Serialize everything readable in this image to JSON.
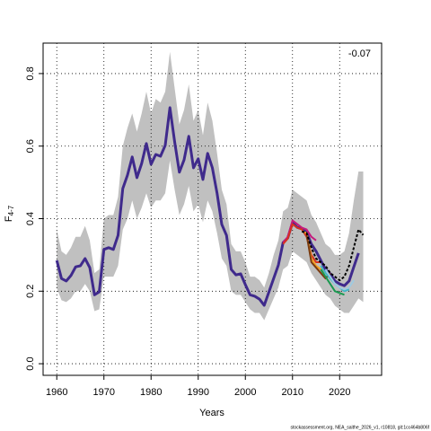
{
  "chart_data": {
    "type": "line",
    "xlabel": "Years",
    "ylabel": "F",
    "ylabel_sub": "4-7",
    "annotation": "-0.07",
    "footer": "stockassessment.org, NEA_saithe_2026_v1, r10818, git:1cc464b806f",
    "xlim": [
      1957.1,
      2028.9
    ],
    "ylim": [
      -0.032,
      0.884
    ],
    "xticks": [
      1960,
      1970,
      1980,
      1990,
      2000,
      2010,
      2020
    ],
    "yticks": [
      {
        "value": 0,
        "label": "0.0"
      },
      {
        "value": 0.2,
        "label": "0.2"
      },
      {
        "value": 0.4,
        "label": "0.4"
      },
      {
        "value": 0.6,
        "label": "0.6"
      },
      {
        "value": 0.8,
        "label": "0.8"
      }
    ],
    "grid": true,
    "band": {
      "color": "#c0c0c0",
      "x": [
        1960,
        1961,
        1962,
        1963,
        1964,
        1965,
        1966,
        1967,
        1968,
        1969,
        1970,
        1971,
        1972,
        1973,
        1974,
        1975,
        1976,
        1977,
        1978,
        1979,
        1980,
        1981,
        1982,
        1983,
        1984,
        1985,
        1986,
        1987,
        1988,
        1989,
        1990,
        1991,
        1992,
        1993,
        1994,
        1995,
        1996,
        1997,
        1998,
        1999,
        2000,
        2001,
        2002,
        2003,
        2004,
        2005,
        2006,
        2007,
        2008,
        2009,
        2010,
        2011,
        2012,
        2013,
        2014,
        2015,
        2016,
        2017,
        2018,
        2019,
        2020,
        2021,
        2022,
        2023,
        2024,
        2025
      ],
      "upper": [
        0.37,
        0.31,
        0.3,
        0.32,
        0.35,
        0.35,
        0.38,
        0.34,
        0.25,
        0.26,
        0.4,
        0.41,
        0.41,
        0.46,
        0.6,
        0.65,
        0.69,
        0.64,
        0.69,
        0.75,
        0.69,
        0.73,
        0.72,
        0.75,
        0.86,
        0.76,
        0.66,
        0.7,
        0.77,
        0.67,
        0.7,
        0.63,
        0.72,
        0.67,
        0.58,
        0.48,
        0.44,
        0.33,
        0.31,
        0.31,
        0.28,
        0.24,
        0.24,
        0.23,
        0.21,
        0.25,
        0.3,
        0.34,
        0.42,
        0.43,
        0.48,
        0.47,
        0.46,
        0.45,
        0.41,
        0.39,
        0.36,
        0.33,
        0.32,
        0.3,
        0.3,
        0.31,
        0.36,
        0.45,
        0.53,
        0.53
      ],
      "lower": [
        0.21,
        0.175,
        0.17,
        0.18,
        0.2,
        0.2,
        0.22,
        0.2,
        0.145,
        0.15,
        0.24,
        0.24,
        0.24,
        0.27,
        0.37,
        0.4,
        0.45,
        0.4,
        0.43,
        0.47,
        0.43,
        0.45,
        0.45,
        0.47,
        0.56,
        0.48,
        0.41,
        0.44,
        0.49,
        0.42,
        0.44,
        0.39,
        0.45,
        0.42,
        0.36,
        0.29,
        0.27,
        0.2,
        0.19,
        0.19,
        0.17,
        0.15,
        0.14,
        0.14,
        0.12,
        0.15,
        0.18,
        0.21,
        0.26,
        0.27,
        0.31,
        0.3,
        0.29,
        0.28,
        0.25,
        0.23,
        0.21,
        0.19,
        0.18,
        0.16,
        0.15,
        0.14,
        0.14,
        0.16,
        0.18,
        0.17
      ]
    },
    "series": [
      {
        "color": "#3f2a8c",
        "width": 3,
        "x": [
          1960,
          1961,
          1962,
          1963,
          1964,
          1965,
          1966,
          1967,
          1968,
          1969,
          1970,
          1971,
          1972,
          1973,
          1974,
          1975,
          1976,
          1977,
          1978,
          1979,
          1980,
          1981,
          1982,
          1983,
          1984,
          1985,
          1986,
          1987,
          1988,
          1989,
          1990,
          1991,
          1992,
          1993,
          1994,
          1995,
          1996,
          1997,
          1998,
          1999,
          2000,
          2001,
          2002,
          2003,
          2004,
          2005,
          2006,
          2007,
          2008,
          2009,
          2010,
          2011,
          2012,
          2013,
          2014,
          2015,
          2016,
          2017,
          2018,
          2019,
          2020,
          2021,
          2022,
          2023,
          2024
        ],
        "values": [
          0.285,
          0.235,
          0.228,
          0.243,
          0.267,
          0.27,
          0.29,
          0.265,
          0.19,
          0.198,
          0.315,
          0.32,
          0.315,
          0.354,
          0.483,
          0.52,
          0.57,
          0.513,
          0.552,
          0.607,
          0.55,
          0.577,
          0.572,
          0.602,
          0.706,
          0.612,
          0.528,
          0.562,
          0.627,
          0.54,
          0.565,
          0.508,
          0.58,
          0.54,
          0.47,
          0.384,
          0.354,
          0.26,
          0.245,
          0.248,
          0.218,
          0.19,
          0.186,
          0.178,
          0.161,
          0.198,
          0.235,
          0.272,
          0.334,
          0.347,
          0.389,
          0.376,
          0.372,
          0.362,
          0.33,
          0.31,
          0.285,
          0.26,
          0.248,
          0.228,
          0.22,
          0.215,
          0.228,
          0.267,
          0.305
        ]
      },
      {
        "color": "#c51b7d",
        "width": 2,
        "x": [
          2008,
          2009,
          2010,
          2011,
          2012,
          2013,
          2014,
          2015
        ],
        "values": [
          0.334,
          0.35,
          0.395,
          0.385,
          0.375,
          0.37,
          0.35,
          0.34
        ]
      },
      {
        "color": "#d7301f",
        "width": 2,
        "x": [
          2008,
          2009,
          2010,
          2011,
          2012,
          2013,
          2014,
          2015,
          2016
        ],
        "values": [
          0.33,
          0.345,
          0.385,
          0.375,
          0.37,
          0.35,
          0.3,
          0.28,
          0.28
        ]
      },
      {
        "color": "#f4a020",
        "width": 2,
        "x": [
          2012,
          2013,
          2014,
          2015,
          2016,
          2017
        ],
        "values": [
          0.365,
          0.36,
          0.29,
          0.27,
          0.26,
          0.25
        ]
      },
      {
        "color": "#7a3b10",
        "width": 2,
        "x": [
          2013,
          2014,
          2015,
          2016,
          2017,
          2018
        ],
        "values": [
          0.355,
          0.28,
          0.265,
          0.25,
          0.235,
          0.25
        ]
      },
      {
        "color": "#1a9850",
        "width": 2,
        "x": [
          2016,
          2017,
          2018,
          2019,
          2020,
          2021
        ],
        "values": [
          0.26,
          0.24,
          0.22,
          0.2,
          0.195,
          0.19
        ]
      },
      {
        "color": "#41b6c4",
        "width": 2,
        "x": [
          2016,
          2017,
          2018,
          2019,
          2020,
          2021,
          2022
        ],
        "values": [
          0.27,
          0.25,
          0.235,
          0.22,
          0.21,
          0.2,
          0.205
        ]
      },
      {
        "color": "#9ecae1",
        "width": 2,
        "x": [
          2017,
          2018,
          2019,
          2020,
          2021,
          2022,
          2023
        ],
        "values": [
          0.26,
          0.24,
          0.22,
          0.21,
          0.205,
          0.21,
          0.23
        ]
      },
      {
        "color": "#000000",
        "width": 2,
        "dash": true,
        "x": [
          2012,
          2013,
          2014,
          2015,
          2016,
          2017,
          2018,
          2019,
          2020,
          2021,
          2022,
          2023,
          2024,
          2025
        ],
        "values": [
          0.365,
          0.36,
          0.32,
          0.29,
          0.28,
          0.27,
          0.25,
          0.24,
          0.23,
          0.24,
          0.27,
          0.32,
          0.37,
          0.355
        ]
      }
    ]
  }
}
